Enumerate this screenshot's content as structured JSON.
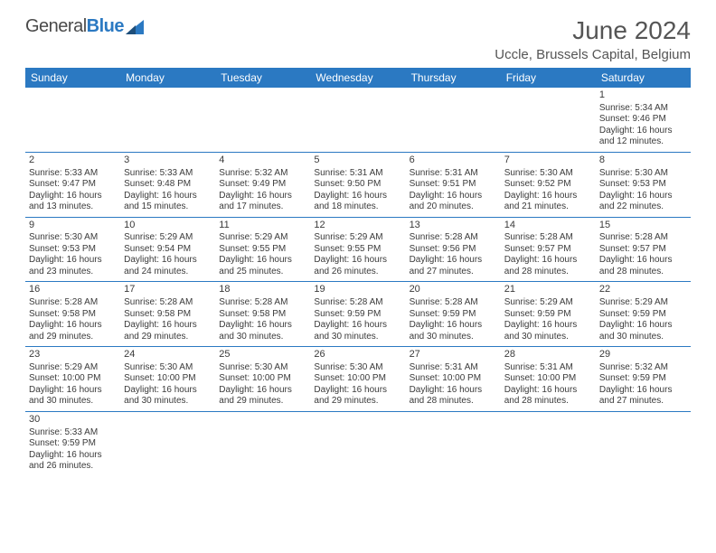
{
  "logo": {
    "name": "General",
    "accent": "Blue"
  },
  "header": {
    "month": "June 2024",
    "location": "Uccle, Brussels Capital, Belgium"
  },
  "colors": {
    "header_bg": "#2b79c2",
    "border": "#2b79c2",
    "text": "#3a3a3a"
  },
  "day_names": [
    "Sunday",
    "Monday",
    "Tuesday",
    "Wednesday",
    "Thursday",
    "Friday",
    "Saturday"
  ],
  "weeks": [
    [
      null,
      null,
      null,
      null,
      null,
      null,
      {
        "n": "1",
        "sr": "Sunrise: 5:34 AM",
        "ss": "Sunset: 9:46 PM",
        "d1": "Daylight: 16 hours",
        "d2": "and 12 minutes."
      }
    ],
    [
      {
        "n": "2",
        "sr": "Sunrise: 5:33 AM",
        "ss": "Sunset: 9:47 PM",
        "d1": "Daylight: 16 hours",
        "d2": "and 13 minutes."
      },
      {
        "n": "3",
        "sr": "Sunrise: 5:33 AM",
        "ss": "Sunset: 9:48 PM",
        "d1": "Daylight: 16 hours",
        "d2": "and 15 minutes."
      },
      {
        "n": "4",
        "sr": "Sunrise: 5:32 AM",
        "ss": "Sunset: 9:49 PM",
        "d1": "Daylight: 16 hours",
        "d2": "and 17 minutes."
      },
      {
        "n": "5",
        "sr": "Sunrise: 5:31 AM",
        "ss": "Sunset: 9:50 PM",
        "d1": "Daylight: 16 hours",
        "d2": "and 18 minutes."
      },
      {
        "n": "6",
        "sr": "Sunrise: 5:31 AM",
        "ss": "Sunset: 9:51 PM",
        "d1": "Daylight: 16 hours",
        "d2": "and 20 minutes."
      },
      {
        "n": "7",
        "sr": "Sunrise: 5:30 AM",
        "ss": "Sunset: 9:52 PM",
        "d1": "Daylight: 16 hours",
        "d2": "and 21 minutes."
      },
      {
        "n": "8",
        "sr": "Sunrise: 5:30 AM",
        "ss": "Sunset: 9:53 PM",
        "d1": "Daylight: 16 hours",
        "d2": "and 22 minutes."
      }
    ],
    [
      {
        "n": "9",
        "sr": "Sunrise: 5:30 AM",
        "ss": "Sunset: 9:53 PM",
        "d1": "Daylight: 16 hours",
        "d2": "and 23 minutes."
      },
      {
        "n": "10",
        "sr": "Sunrise: 5:29 AM",
        "ss": "Sunset: 9:54 PM",
        "d1": "Daylight: 16 hours",
        "d2": "and 24 minutes."
      },
      {
        "n": "11",
        "sr": "Sunrise: 5:29 AM",
        "ss": "Sunset: 9:55 PM",
        "d1": "Daylight: 16 hours",
        "d2": "and 25 minutes."
      },
      {
        "n": "12",
        "sr": "Sunrise: 5:29 AM",
        "ss": "Sunset: 9:55 PM",
        "d1": "Daylight: 16 hours",
        "d2": "and 26 minutes."
      },
      {
        "n": "13",
        "sr": "Sunrise: 5:28 AM",
        "ss": "Sunset: 9:56 PM",
        "d1": "Daylight: 16 hours",
        "d2": "and 27 minutes."
      },
      {
        "n": "14",
        "sr": "Sunrise: 5:28 AM",
        "ss": "Sunset: 9:57 PM",
        "d1": "Daylight: 16 hours",
        "d2": "and 28 minutes."
      },
      {
        "n": "15",
        "sr": "Sunrise: 5:28 AM",
        "ss": "Sunset: 9:57 PM",
        "d1": "Daylight: 16 hours",
        "d2": "and 28 minutes."
      }
    ],
    [
      {
        "n": "16",
        "sr": "Sunrise: 5:28 AM",
        "ss": "Sunset: 9:58 PM",
        "d1": "Daylight: 16 hours",
        "d2": "and 29 minutes."
      },
      {
        "n": "17",
        "sr": "Sunrise: 5:28 AM",
        "ss": "Sunset: 9:58 PM",
        "d1": "Daylight: 16 hours",
        "d2": "and 29 minutes."
      },
      {
        "n": "18",
        "sr": "Sunrise: 5:28 AM",
        "ss": "Sunset: 9:58 PM",
        "d1": "Daylight: 16 hours",
        "d2": "and 30 minutes."
      },
      {
        "n": "19",
        "sr": "Sunrise: 5:28 AM",
        "ss": "Sunset: 9:59 PM",
        "d1": "Daylight: 16 hours",
        "d2": "and 30 minutes."
      },
      {
        "n": "20",
        "sr": "Sunrise: 5:28 AM",
        "ss": "Sunset: 9:59 PM",
        "d1": "Daylight: 16 hours",
        "d2": "and 30 minutes."
      },
      {
        "n": "21",
        "sr": "Sunrise: 5:29 AM",
        "ss": "Sunset: 9:59 PM",
        "d1": "Daylight: 16 hours",
        "d2": "and 30 minutes."
      },
      {
        "n": "22",
        "sr": "Sunrise: 5:29 AM",
        "ss": "Sunset: 9:59 PM",
        "d1": "Daylight: 16 hours",
        "d2": "and 30 minutes."
      }
    ],
    [
      {
        "n": "23",
        "sr": "Sunrise: 5:29 AM",
        "ss": "Sunset: 10:00 PM",
        "d1": "Daylight: 16 hours",
        "d2": "and 30 minutes."
      },
      {
        "n": "24",
        "sr": "Sunrise: 5:30 AM",
        "ss": "Sunset: 10:00 PM",
        "d1": "Daylight: 16 hours",
        "d2": "and 30 minutes."
      },
      {
        "n": "25",
        "sr": "Sunrise: 5:30 AM",
        "ss": "Sunset: 10:00 PM",
        "d1": "Daylight: 16 hours",
        "d2": "and 29 minutes."
      },
      {
        "n": "26",
        "sr": "Sunrise: 5:30 AM",
        "ss": "Sunset: 10:00 PM",
        "d1": "Daylight: 16 hours",
        "d2": "and 29 minutes."
      },
      {
        "n": "27",
        "sr": "Sunrise: 5:31 AM",
        "ss": "Sunset: 10:00 PM",
        "d1": "Daylight: 16 hours",
        "d2": "and 28 minutes."
      },
      {
        "n": "28",
        "sr": "Sunrise: 5:31 AM",
        "ss": "Sunset: 10:00 PM",
        "d1": "Daylight: 16 hours",
        "d2": "and 28 minutes."
      },
      {
        "n": "29",
        "sr": "Sunrise: 5:32 AM",
        "ss": "Sunset: 9:59 PM",
        "d1": "Daylight: 16 hours",
        "d2": "and 27 minutes."
      }
    ],
    [
      {
        "n": "30",
        "sr": "Sunrise: 5:33 AM",
        "ss": "Sunset: 9:59 PM",
        "d1": "Daylight: 16 hours",
        "d2": "and 26 minutes."
      },
      null,
      null,
      null,
      null,
      null,
      null
    ]
  ]
}
